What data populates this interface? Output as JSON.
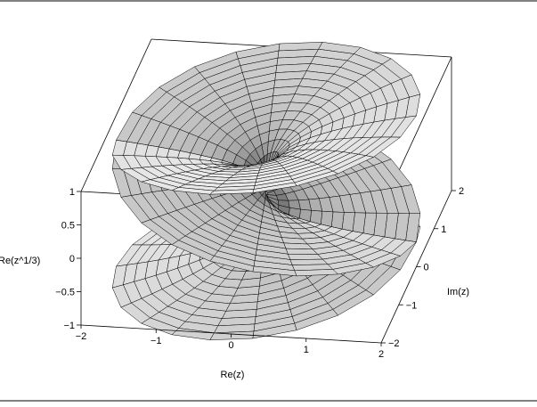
{
  "chart_data": {
    "type": "surface3d",
    "function": "Re(z^1/3)",
    "xlabel": "Re(z)",
    "ylabel": "Im(z)",
    "zlabel": "Re(z^1/3)",
    "xlim": [
      -2,
      2
    ],
    "ylim": [
      -2,
      2
    ],
    "zlim": [
      -1,
      1
    ],
    "x_ticks": [
      "−2",
      "−1",
      "0",
      "1",
      "2"
    ],
    "y_ticks": [
      "−2",
      "−1",
      "0",
      "1",
      "2"
    ],
    "z_ticks": [
      "−1",
      "−0.5",
      "0",
      "0.5",
      "1"
    ],
    "x_tick_values": [
      -2,
      -1,
      0,
      1,
      2
    ],
    "y_tick_values": [
      -2,
      -1,
      0,
      1,
      2
    ],
    "z_tick_values": [
      -1,
      -0.5,
      0,
      0.5,
      1
    ],
    "branches": 3,
    "mesh": "polar grid, shaded grey",
    "box": true,
    "surface_color": "#9a9a9a",
    "edge_color": "#000000"
  }
}
